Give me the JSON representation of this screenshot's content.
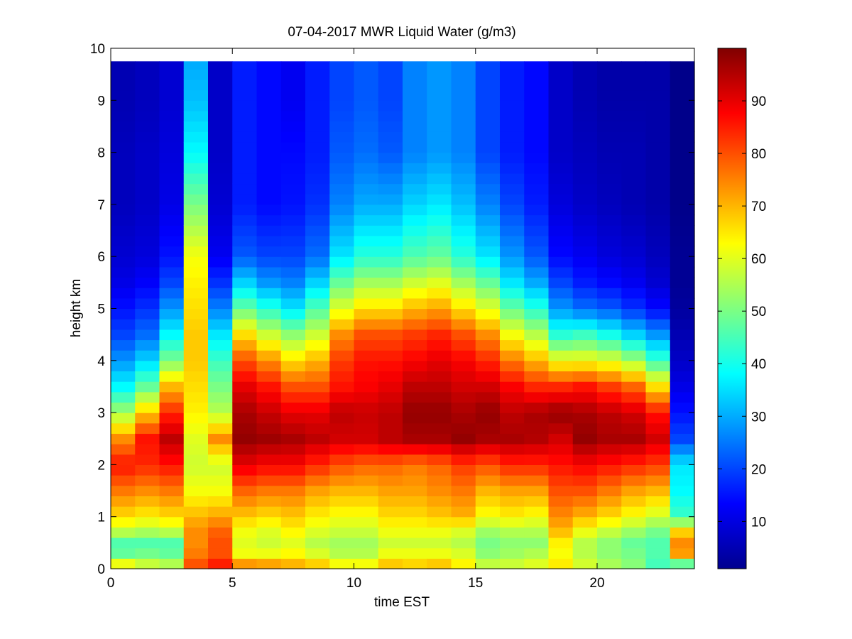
{
  "chart_data": {
    "type": "heatmap",
    "title": "07-04-2017 MWR Liquid Water (g/m3)",
    "xlabel": "time EST",
    "ylabel": "height km",
    "xlim": [
      0,
      24
    ],
    "ylim": [
      0,
      10
    ],
    "x_ticks": [
      "0",
      "5",
      "10",
      "15",
      "20"
    ],
    "y_ticks": [
      "0",
      "1",
      "2",
      "3",
      "4",
      "5",
      "6",
      "7",
      "8",
      "9",
      "10"
    ],
    "colorbar": {
      "colormap": "jet",
      "range": [
        1,
        100
      ],
      "ticks": [
        "10",
        "20",
        "30",
        "40",
        "50",
        "60",
        "70",
        "80",
        "90"
      ]
    },
    "grid": false,
    "x": [
      0.5,
      1.5,
      2.5,
      3.5,
      4.5,
      5.5,
      6.5,
      7.5,
      8.5,
      9.5,
      10.5,
      11.5,
      12.5,
      13.5,
      14.5,
      15.5,
      16.5,
      17.5,
      18.5,
      19.5,
      20.5,
      21.5,
      22.5,
      23.5
    ],
    "heights": [
      0,
      0.25,
      0.5,
      0.75,
      1,
      1.5,
      2,
      2.5,
      3,
      3.5,
      4,
      4.5,
      5,
      5.5,
      6,
      7,
      8,
      9,
      9.75
    ],
    "values": [
      [
        70,
        62,
        60,
        82,
        88,
        80,
        78,
        74,
        72,
        66,
        66,
        72,
        70,
        72,
        66,
        60,
        60,
        62,
        66,
        60,
        56,
        52,
        44,
        32
      ],
      [
        48,
        50,
        48,
        76,
        80,
        62,
        62,
        64,
        60,
        56,
        56,
        62,
        62,
        62,
        60,
        52,
        54,
        56,
        62,
        56,
        52,
        50,
        46,
        72
      ],
      [
        46,
        46,
        46,
        74,
        80,
        60,
        58,
        60,
        56,
        54,
        54,
        58,
        58,
        58,
        56,
        50,
        52,
        52,
        64,
        56,
        52,
        48,
        46,
        74
      ],
      [
        58,
        56,
        58,
        74,
        78,
        62,
        60,
        64,
        60,
        58,
        58,
        62,
        62,
        62,
        60,
        54,
        56,
        56,
        70,
        62,
        58,
        54,
        50,
        66
      ],
      [
        66,
        64,
        66,
        70,
        72,
        68,
        66,
        68,
        64,
        62,
        62,
        66,
        66,
        68,
        70,
        62,
        64,
        62,
        74,
        70,
        66,
        62,
        58,
        44
      ],
      [
        76,
        74,
        76,
        62,
        62,
        78,
        76,
        76,
        72,
        70,
        70,
        72,
        72,
        74,
        76,
        70,
        72,
        72,
        80,
        80,
        76,
        72,
        70,
        38
      ],
      [
        86,
        84,
        86,
        58,
        58,
        90,
        88,
        88,
        84,
        80,
        78,
        78,
        76,
        78,
        82,
        80,
        84,
        84,
        86,
        88,
        86,
        84,
        82,
        36
      ],
      [
        74,
        86,
        94,
        60,
        74,
        98,
        97,
        96,
        94,
        92,
        92,
        94,
        96,
        96,
        98,
        96,
        96,
        95,
        92,
        98,
        96,
        96,
        92,
        20
      ],
      [
        54,
        68,
        84,
        64,
        56,
        96,
        93,
        90,
        90,
        94,
        93,
        94,
        98,
        98,
        96,
        98,
        94,
        96,
        98,
        96,
        94,
        92,
        86,
        15
      ],
      [
        38,
        48,
        70,
        66,
        50,
        90,
        86,
        80,
        80,
        86,
        88,
        90,
        94,
        94,
        92,
        92,
        88,
        84,
        84,
        86,
        82,
        78,
        66,
        11
      ],
      [
        28,
        34,
        50,
        68,
        44,
        80,
        74,
        66,
        70,
        82,
        86,
        86,
        88,
        90,
        88,
        84,
        76,
        70,
        62,
        62,
        60,
        54,
        44,
        8
      ],
      [
        20,
        24,
        38,
        68,
        36,
        66,
        58,
        52,
        58,
        74,
        80,
        80,
        82,
        84,
        80,
        74,
        62,
        56,
        42,
        44,
        40,
        34,
        28,
        6
      ],
      [
        15,
        18,
        28,
        66,
        26,
        48,
        42,
        36,
        46,
        60,
        66,
        66,
        70,
        72,
        66,
        60,
        48,
        42,
        28,
        24,
        22,
        18,
        14,
        4
      ],
      [
        11,
        13,
        20,
        64,
        18,
        34,
        28,
        26,
        34,
        48,
        54,
        54,
        58,
        60,
        54,
        48,
        36,
        30,
        20,
        16,
        14,
        12,
        9,
        3
      ],
      [
        9,
        10,
        15,
        62,
        12,
        22,
        20,
        20,
        24,
        36,
        42,
        42,
        46,
        48,
        42,
        36,
        28,
        22,
        14,
        12,
        10,
        9,
        7,
        3
      ],
      [
        7,
        8,
        11,
        50,
        9,
        16,
        14,
        15,
        18,
        26,
        30,
        30,
        34,
        36,
        32,
        26,
        20,
        16,
        10,
        8,
        7,
        6,
        5,
        2
      ],
      [
        7,
        8,
        10,
        38,
        8,
        16,
        14,
        14,
        16,
        22,
        24,
        22,
        26,
        28,
        26,
        20,
        16,
        14,
        8,
        7,
        6,
        6,
        5,
        2
      ],
      [
        6,
        7,
        9,
        32,
        8,
        16,
        14,
        12,
        16,
        20,
        22,
        20,
        26,
        28,
        26,
        20,
        16,
        14,
        8,
        6,
        5,
        5,
        5,
        2
      ],
      [
        6,
        7,
        9,
        30,
        8,
        16,
        14,
        12,
        16,
        20,
        22,
        20,
        26,
        28,
        26,
        20,
        16,
        14,
        8,
        6,
        5,
        5,
        5,
        2
      ]
    ]
  }
}
